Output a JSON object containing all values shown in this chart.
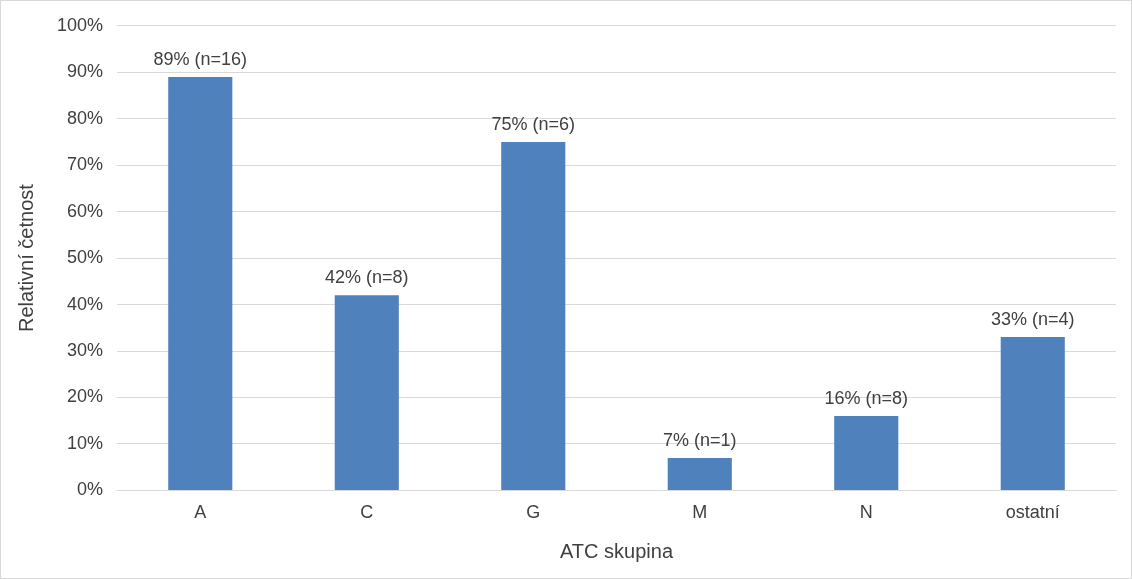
{
  "chart_data": {
    "type": "bar",
    "xlabel": "ATC skupina",
    "ylabel": "Relativní četnost",
    "categories": [
      "A",
      "C",
      "G",
      "M",
      "N",
      "ostatní"
    ],
    "values": [
      89,
      42,
      75,
      7,
      16,
      33
    ],
    "value_labels": [
      "89% (n=16)",
      "42% (n=8)",
      "75% (n=6)",
      "7% (n=1)",
      "16% (n=8)",
      "33% (n=4)"
    ],
    "color": "#4f81bd",
    "ylim": [
      0,
      100
    ],
    "yticks": [
      {
        "value": 0,
        "label": "0%"
      },
      {
        "value": 10,
        "label": "10%"
      },
      {
        "value": 20,
        "label": "20%"
      },
      {
        "value": 30,
        "label": "30%"
      },
      {
        "value": 40,
        "label": "40%"
      },
      {
        "value": 50,
        "label": "50%"
      },
      {
        "value": 60,
        "label": "60%"
      },
      {
        "value": 70,
        "label": "70%"
      },
      {
        "value": 80,
        "label": "80%"
      },
      {
        "value": 90,
        "label": "90%"
      },
      {
        "value": 100,
        "label": "100%"
      }
    ],
    "grid": "y",
    "legend": false
  }
}
